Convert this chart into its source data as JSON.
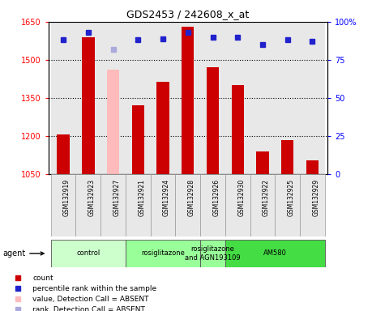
{
  "title": "GDS2453 / 242608_x_at",
  "samples": [
    "GSM132919",
    "GSM132923",
    "GSM132927",
    "GSM132921",
    "GSM132924",
    "GSM132928",
    "GSM132926",
    "GSM132930",
    "GSM132922",
    "GSM132925",
    "GSM132929"
  ],
  "bar_values": [
    1207,
    1590,
    1460,
    1320,
    1415,
    1630,
    1470,
    1400,
    1140,
    1185,
    1105
  ],
  "bar_colors": [
    "#cc0000",
    "#cc0000",
    "#ffbbbb",
    "#cc0000",
    "#cc0000",
    "#cc0000",
    "#cc0000",
    "#cc0000",
    "#cc0000",
    "#cc0000",
    "#cc0000"
  ],
  "rank_values": [
    88,
    93,
    82,
    88,
    89,
    93,
    90,
    90,
    85,
    88,
    87
  ],
  "rank_colors": [
    "#2222cc",
    "#2222cc",
    "#aaaadd",
    "#2222cc",
    "#2222cc",
    "#2222cc",
    "#2222cc",
    "#2222cc",
    "#2222cc",
    "#2222cc",
    "#2222cc"
  ],
  "ylim_left": [
    1050,
    1650
  ],
  "ylim_right": [
    0,
    100
  ],
  "yticks_left": [
    1050,
    1200,
    1350,
    1500,
    1650
  ],
  "yticks_right": [
    0,
    25,
    50,
    75,
    100
  ],
  "agent_groups": [
    {
      "label": "control",
      "start": 0,
      "end": 3,
      "color": "#ccffcc"
    },
    {
      "label": "rosiglitazone",
      "start": 3,
      "end": 6,
      "color": "#99ff99"
    },
    {
      "label": "rosiglitazone\nand AGN193109",
      "start": 6,
      "end": 7,
      "color": "#99ff99"
    },
    {
      "label": "AM580",
      "start": 7,
      "end": 11,
      "color": "#44dd44"
    }
  ],
  "legend_items": [
    {
      "color": "#cc0000",
      "label": "count"
    },
    {
      "color": "#2222cc",
      "label": "percentile rank within the sample"
    },
    {
      "color": "#ffbbbb",
      "label": "value, Detection Call = ABSENT"
    },
    {
      "color": "#aaaadd",
      "label": "rank, Detection Call = ABSENT"
    }
  ],
  "bar_width": 0.5,
  "bg_color": "#e8e8e8"
}
